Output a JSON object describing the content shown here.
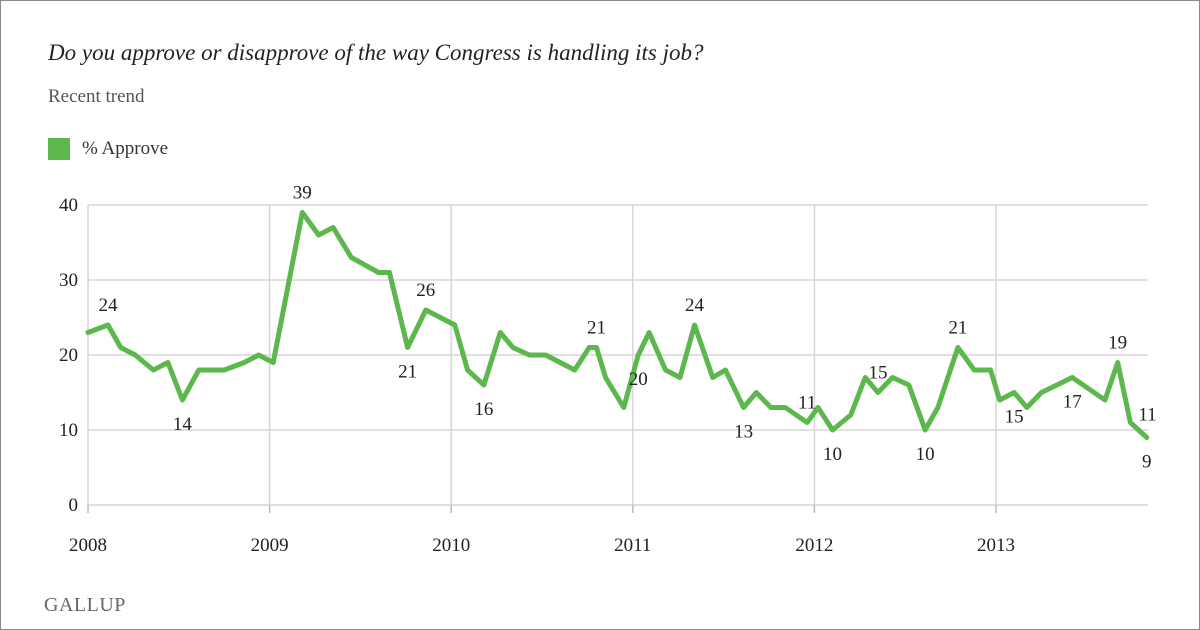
{
  "chart_data": {
    "type": "line",
    "title": "Do you approve or disapprove of the way Congress is handling its job?",
    "subtitle": "Recent trend",
    "xlabel": "",
    "ylabel": "",
    "xlim": [
      2008,
      2013.85
    ],
    "ylim": [
      0,
      40
    ],
    "grid": true,
    "legend_placement": "top-left",
    "x_ticks": [
      "2008",
      "2009",
      "2010",
      "2011",
      "2012",
      "2013"
    ],
    "y_ticks": [
      "0",
      "10",
      "20",
      "30",
      "40"
    ],
    "series": [
      {
        "name": "% Approve",
        "color": "#5cb84d",
        "x": [
          2008.0,
          2008.11,
          2008.18,
          2008.26,
          2008.36,
          2008.44,
          2008.52,
          2008.61,
          2008.75,
          2008.86,
          2008.94,
          2009.02,
          2009.18,
          2009.27,
          2009.35,
          2009.45,
          2009.6,
          2009.66,
          2009.76,
          2009.86,
          2009.94,
          2010.02,
          2010.09,
          2010.18,
          2010.27,
          2010.34,
          2010.43,
          2010.52,
          2010.68,
          2010.76,
          2010.8,
          2010.85,
          2010.95,
          2011.03,
          2011.09,
          2011.18,
          2011.26,
          2011.34,
          2011.44,
          2011.51,
          2011.61,
          2011.68,
          2011.76,
          2011.84,
          2011.96,
          2012.02,
          2012.1,
          2012.2,
          2012.28,
          2012.35,
          2012.43,
          2012.52,
          2012.61,
          2012.68,
          2012.79,
          2012.88,
          2012.97,
          2013.02,
          2013.1,
          2013.17,
          2013.25,
          2013.42,
          2013.6,
          2013.67,
          2013.74,
          2013.83
        ],
        "values": [
          23,
          24,
          21,
          20,
          18,
          19,
          14,
          18,
          18,
          19,
          20,
          19,
          39,
          36,
          37,
          33,
          31,
          31,
          21,
          26,
          25,
          24,
          18,
          16,
          23,
          21,
          20,
          20,
          18,
          21,
          21,
          17,
          13,
          20,
          23,
          18,
          17,
          24,
          17,
          18,
          13,
          15,
          13,
          13,
          11,
          13,
          10,
          12,
          17,
          15,
          17,
          16,
          10,
          13,
          21,
          18,
          18,
          14,
          15,
          13,
          15,
          17,
          14,
          19,
          11,
          9
        ]
      }
    ],
    "annotations": [
      {
        "x": 2008.11,
        "value": "24",
        "pos": "above"
      },
      {
        "x": 2008.52,
        "value": "14",
        "pos": "below"
      },
      {
        "x": 2009.18,
        "value": "39",
        "pos": "above"
      },
      {
        "x": 2009.76,
        "value": "21",
        "pos": "below"
      },
      {
        "x": 2009.86,
        "value": "26",
        "pos": "above"
      },
      {
        "x": 2010.18,
        "value": "16",
        "pos": "below"
      },
      {
        "x": 2010.8,
        "value": "21",
        "pos": "above"
      },
      {
        "x": 2011.03,
        "value": "20",
        "pos": "below"
      },
      {
        "x": 2011.34,
        "value": "24",
        "pos": "above"
      },
      {
        "x": 2011.61,
        "value": "13",
        "pos": "below"
      },
      {
        "x": 2011.96,
        "value": "11",
        "pos": "above"
      },
      {
        "x": 2012.1,
        "value": "10",
        "pos": "below"
      },
      {
        "x": 2012.35,
        "value": "15",
        "pos": "above"
      },
      {
        "x": 2012.61,
        "value": "10",
        "pos": "below"
      },
      {
        "x": 2012.79,
        "value": "21",
        "pos": "above"
      },
      {
        "x": 2013.1,
        "value": "15",
        "pos": "below"
      },
      {
        "x": 2013.42,
        "value": "17",
        "pos": "below"
      },
      {
        "x": 2013.67,
        "value": "19",
        "pos": "above"
      },
      {
        "x": 2013.74,
        "value": "11",
        "pos": "right"
      },
      {
        "x": 2013.83,
        "value": "9",
        "pos": "below"
      }
    ]
  },
  "footer": {
    "brand": "GALLUP"
  }
}
